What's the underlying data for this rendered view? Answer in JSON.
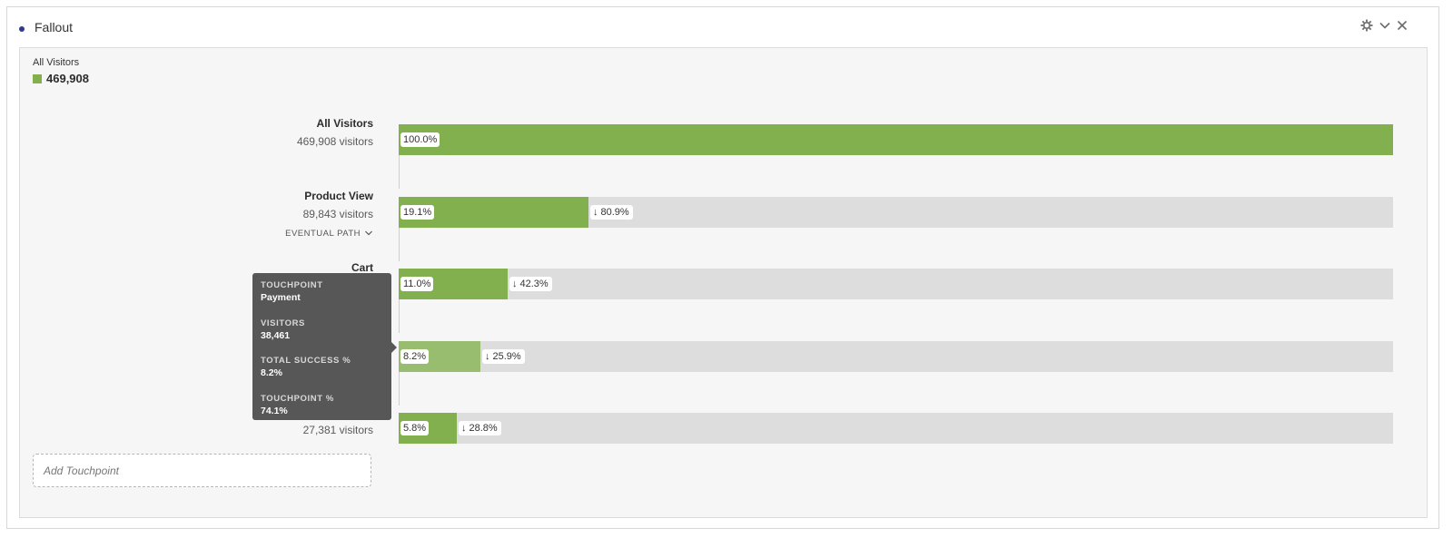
{
  "panel": {
    "title": "Fallout"
  },
  "legend": {
    "title": "All Visitors",
    "value": "469,908",
    "color": "#82b04e"
  },
  "colors": {
    "fill": "#82b04e",
    "fill_hover": "#98bd6e",
    "track": "#dddddd"
  },
  "chart_data": {
    "type": "bar",
    "categories": [
      "All Visitors",
      "Product View",
      "Cart",
      "Payment",
      ""
    ],
    "series": [
      {
        "values": [
          100.0,
          19.1,
          11.0,
          8.2,
          5.8
        ]
      }
    ],
    "xlim": [
      0,
      100
    ],
    "grid": false,
    "legend": "top-left"
  },
  "steps": [
    {
      "name": "All Visitors",
      "visitors": "469,908 visitors",
      "pct": "100.0%",
      "value": 100.0,
      "drop": ""
    },
    {
      "name": "Product View",
      "visitors": "89,843 visitors",
      "pct": "19.1%",
      "value": 19.1,
      "drop": "80.9%",
      "eventual": "EVENTUAL PATH"
    },
    {
      "name": "Cart",
      "visitors": "",
      "pct": "11.0%",
      "value": 11.0,
      "drop": "42.3%"
    },
    {
      "name": "",
      "visitors": "",
      "pct": "8.2%",
      "value": 8.2,
      "drop": "25.9%",
      "hover": true
    },
    {
      "name": "",
      "visitors": "27,381 visitors",
      "pct": "5.8%",
      "value": 5.8,
      "drop": "28.8%"
    }
  ],
  "add_touchpoint": "Add Touchpoint",
  "tooltip": {
    "touchpoint_label": "TOUCHPOINT",
    "touchpoint_value": "Payment",
    "visitors_label": "VISITORS",
    "visitors_value": "38,461",
    "success_label": "TOTAL SUCCESS %",
    "success_value": "8.2%",
    "tp_pct_label": "TOUCHPOINT %",
    "tp_pct_value": "74.1%"
  },
  "icons": {
    "settings": "gear-icon",
    "collapse": "chevron-down-icon",
    "close": "close-icon",
    "drop": "down-arrow-icon"
  }
}
